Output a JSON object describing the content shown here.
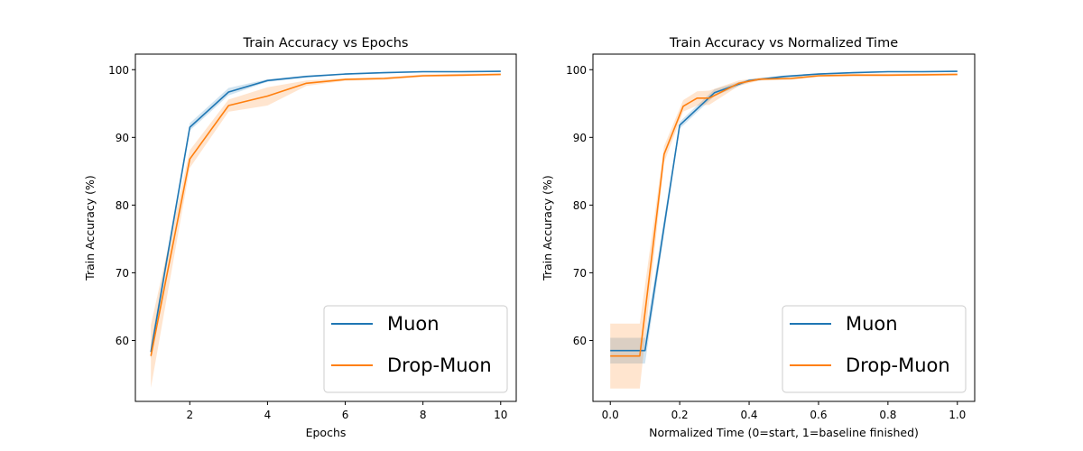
{
  "chart_data": [
    {
      "type": "line",
      "title": "Train Accuracy vs Epochs",
      "xlabel": "Epochs",
      "ylabel": "Train Accuracy (%)",
      "xlim": [
        0.6,
        10.4
      ],
      "ylim": [
        51,
        102.3
      ],
      "xticks": [
        2,
        4,
        6,
        8,
        10
      ],
      "xtick_labels": [
        "2",
        "4",
        "6",
        "8",
        "10"
      ],
      "yticks": [
        60,
        70,
        80,
        90,
        100
      ],
      "ytick_labels": [
        "60",
        "70",
        "80",
        "90",
        "100"
      ],
      "legend_position": "lower-right",
      "series": [
        {
          "name": "Muon",
          "color": "#1f77b4",
          "x": [
            1,
            2,
            3,
            4,
            5,
            6,
            7,
            8,
            9,
            10
          ],
          "y": [
            58.3,
            91.5,
            96.7,
            98.4,
            99.0,
            99.35,
            99.55,
            99.7,
            99.7,
            99.75
          ],
          "lower": [
            57.3,
            91.0,
            96.2,
            98.2,
            98.85,
            99.25,
            99.45,
            99.6,
            99.6,
            99.65
          ],
          "upper": [
            59.3,
            92.1,
            97.3,
            98.6,
            99.15,
            99.45,
            99.65,
            99.8,
            99.8,
            99.85
          ]
        },
        {
          "name": "Drop-Muon",
          "color": "#ff7f0e",
          "x": [
            1,
            2,
            3,
            4,
            5,
            6,
            7,
            8,
            9,
            10
          ],
          "y": [
            57.7,
            86.8,
            94.7,
            96.1,
            98.0,
            98.55,
            98.7,
            99.1,
            99.2,
            99.3
          ],
          "lower": [
            53.0,
            85.5,
            93.8,
            94.7,
            97.6,
            98.35,
            98.5,
            98.9,
            99.0,
            99.1
          ],
          "upper": [
            62.3,
            88.1,
            95.6,
            97.4,
            98.4,
            98.75,
            98.9,
            99.3,
            99.4,
            99.5
          ]
        }
      ]
    },
    {
      "type": "line",
      "title": "Train Accuracy vs Normalized Time",
      "xlabel": "Normalized Time (0=start, 1=baseline finished)",
      "ylabel": "Train Accuracy (%)",
      "xlim": [
        -0.05,
        1.05
      ],
      "ylim": [
        51,
        102.3
      ],
      "xticks": [
        0.0,
        0.2,
        0.4,
        0.6,
        0.8,
        1.0
      ],
      "xtick_labels": [
        "0.0",
        "0.2",
        "0.4",
        "0.6",
        "0.8",
        "1.0"
      ],
      "yticks": [
        60,
        70,
        80,
        90,
        100
      ],
      "ytick_labels": [
        "60",
        "70",
        "80",
        "90",
        "100"
      ],
      "legend_position": "lower-right",
      "series": [
        {
          "name": "Muon",
          "color": "#1f77b4",
          "x": [
            0.0,
            0.1,
            0.2,
            0.3,
            0.4,
            0.5,
            0.6,
            0.7,
            0.8,
            0.9,
            1.0
          ],
          "y": [
            58.5,
            58.5,
            91.8,
            96.6,
            98.4,
            99.0,
            99.35,
            99.55,
            99.7,
            99.7,
            99.75
          ],
          "lower": [
            56.6,
            56.6,
            91.3,
            96.1,
            98.2,
            98.85,
            99.25,
            99.45,
            99.6,
            99.6,
            99.65
          ],
          "upper": [
            60.4,
            60.4,
            92.3,
            97.1,
            98.6,
            99.15,
            99.45,
            99.65,
            99.8,
            99.8,
            99.85
          ]
        },
        {
          "name": "Drop-Muon",
          "color": "#ff7f0e",
          "x": [
            0.0,
            0.085,
            0.155,
            0.21,
            0.25,
            0.285,
            0.37,
            0.43,
            0.52,
            0.6,
            0.7,
            0.8,
            0.9,
            1.0
          ],
          "y": [
            57.7,
            57.7,
            87.5,
            94.6,
            95.8,
            95.8,
            98.0,
            98.6,
            98.7,
            99.1,
            99.2,
            99.2,
            99.25,
            99.3
          ],
          "lower": [
            52.9,
            52.9,
            86.3,
            93.8,
            94.7,
            94.8,
            97.6,
            98.4,
            98.5,
            98.9,
            99.0,
            99.0,
            99.05,
            99.1
          ],
          "upper": [
            62.5,
            62.5,
            88.7,
            95.5,
            96.8,
            96.9,
            98.4,
            98.8,
            98.9,
            99.3,
            99.4,
            99.4,
            99.45,
            99.5
          ]
        }
      ]
    }
  ]
}
